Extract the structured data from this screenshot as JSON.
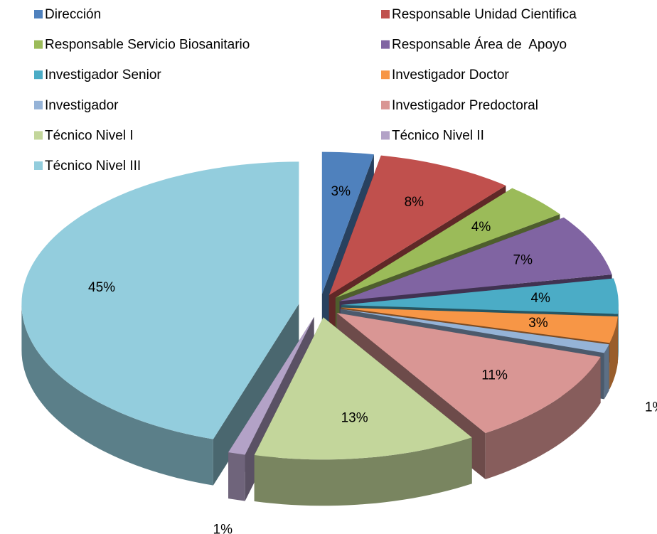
{
  "chart_data": {
    "type": "pie",
    "categories": [
      "Dirección",
      "Responsable Unidad Cientifica",
      "Responsable Servicio Biosanitario",
      "Responsable Área de  Apoyo",
      "Investigador Senior",
      "Investigador Doctor",
      "Investigador",
      "Investigador Predoctoral",
      "Técnico Nivel I",
      "Técnico Nivel II",
      "Técnico Nivel III"
    ],
    "values": [
      3,
      8,
      4,
      7,
      4,
      3,
      1,
      11,
      13,
      1,
      45
    ],
    "value_labels": [
      "3%",
      "8%",
      "4%",
      "7%",
      "4%",
      "3%",
      "1%",
      "11%",
      "13%",
      "1%",
      "45%"
    ],
    "colors": [
      "#4f81bd",
      "#c0504d",
      "#9bbb59",
      "#8064a2",
      "#4bacc6",
      "#f79646",
      "#95b3d7",
      "#d99694",
      "#c3d69b",
      "#b3a2c7",
      "#93cddd"
    ],
    "legend": "top"
  }
}
